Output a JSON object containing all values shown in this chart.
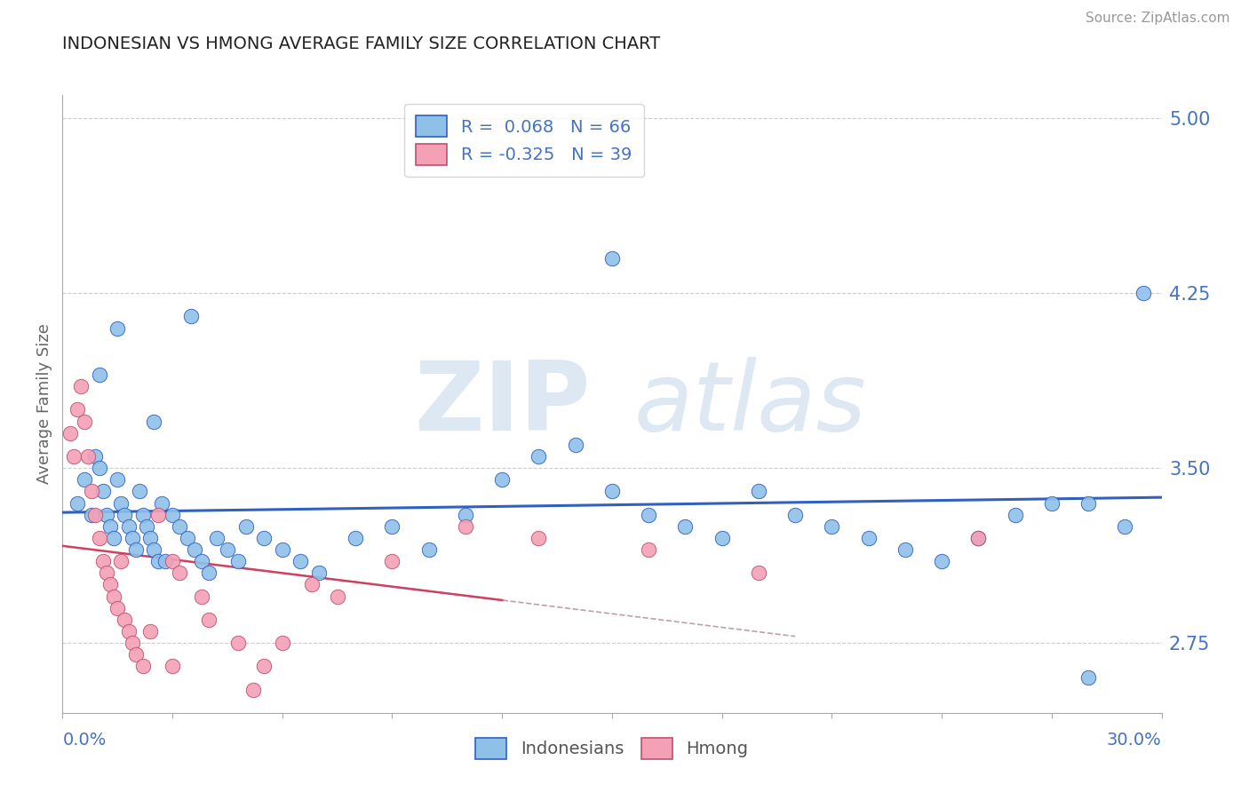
{
  "title": "INDONESIAN VS HMONG AVERAGE FAMILY SIZE CORRELATION CHART",
  "source": "Source: ZipAtlas.com",
  "ylabel": "Average Family Size",
  "xmin": 0.0,
  "xmax": 0.3,
  "ymin": 2.45,
  "ymax": 5.1,
  "yticks": [
    2.75,
    3.5,
    4.25,
    5.0
  ],
  "legend_r_blue": "R =  0.068",
  "legend_n_blue": "N = 66",
  "legend_r_pink": "R = -0.325",
  "legend_n_pink": "N = 39",
  "blue_color": "#8ec0e8",
  "pink_color": "#f4a0b5",
  "trend_blue": "#3060c0",
  "trend_pink": "#d04060",
  "indonesian_x": [
    0.004,
    0.006,
    0.008,
    0.009,
    0.01,
    0.011,
    0.012,
    0.013,
    0.014,
    0.015,
    0.016,
    0.017,
    0.018,
    0.019,
    0.02,
    0.021,
    0.022,
    0.023,
    0.024,
    0.025,
    0.026,
    0.027,
    0.028,
    0.03,
    0.032,
    0.034,
    0.036,
    0.038,
    0.04,
    0.042,
    0.045,
    0.048,
    0.05,
    0.055,
    0.06,
    0.065,
    0.07,
    0.08,
    0.09,
    0.1,
    0.11,
    0.12,
    0.13,
    0.14,
    0.15,
    0.16,
    0.17,
    0.18,
    0.19,
    0.2,
    0.21,
    0.22,
    0.23,
    0.24,
    0.25,
    0.26,
    0.27,
    0.28,
    0.29,
    0.01,
    0.015,
    0.025,
    0.035,
    0.15,
    0.28,
    0.295
  ],
  "indonesian_y": [
    3.35,
    3.45,
    3.3,
    3.55,
    3.5,
    3.4,
    3.3,
    3.25,
    3.2,
    3.45,
    3.35,
    3.3,
    3.25,
    3.2,
    3.15,
    3.4,
    3.3,
    3.25,
    3.2,
    3.15,
    3.1,
    3.35,
    3.1,
    3.3,
    3.25,
    3.2,
    3.15,
    3.1,
    3.05,
    3.2,
    3.15,
    3.1,
    3.25,
    3.2,
    3.15,
    3.1,
    3.05,
    3.2,
    3.25,
    3.15,
    3.3,
    3.45,
    3.55,
    3.6,
    3.4,
    3.3,
    3.25,
    3.2,
    3.4,
    3.3,
    3.25,
    3.2,
    3.15,
    3.1,
    3.2,
    3.3,
    3.35,
    2.6,
    3.25,
    3.9,
    4.1,
    3.7,
    4.15,
    4.4,
    3.35,
    4.25
  ],
  "hmong_x": [
    0.002,
    0.003,
    0.004,
    0.005,
    0.006,
    0.007,
    0.008,
    0.009,
    0.01,
    0.011,
    0.012,
    0.013,
    0.014,
    0.015,
    0.016,
    0.017,
    0.018,
    0.019,
    0.02,
    0.022,
    0.024,
    0.026,
    0.03,
    0.032,
    0.038,
    0.04,
    0.048,
    0.055,
    0.06,
    0.068,
    0.075,
    0.09,
    0.11,
    0.13,
    0.16,
    0.19,
    0.25,
    0.03,
    0.052
  ],
  "hmong_y": [
    3.65,
    3.55,
    3.75,
    3.85,
    3.7,
    3.55,
    3.4,
    3.3,
    3.2,
    3.1,
    3.05,
    3.0,
    2.95,
    2.9,
    3.1,
    2.85,
    2.8,
    2.75,
    2.7,
    2.65,
    2.8,
    3.3,
    3.1,
    3.05,
    2.95,
    2.85,
    2.75,
    2.65,
    2.75,
    3.0,
    2.95,
    3.1,
    3.25,
    3.2,
    3.15,
    3.05,
    3.2,
    2.65,
    2.55
  ]
}
